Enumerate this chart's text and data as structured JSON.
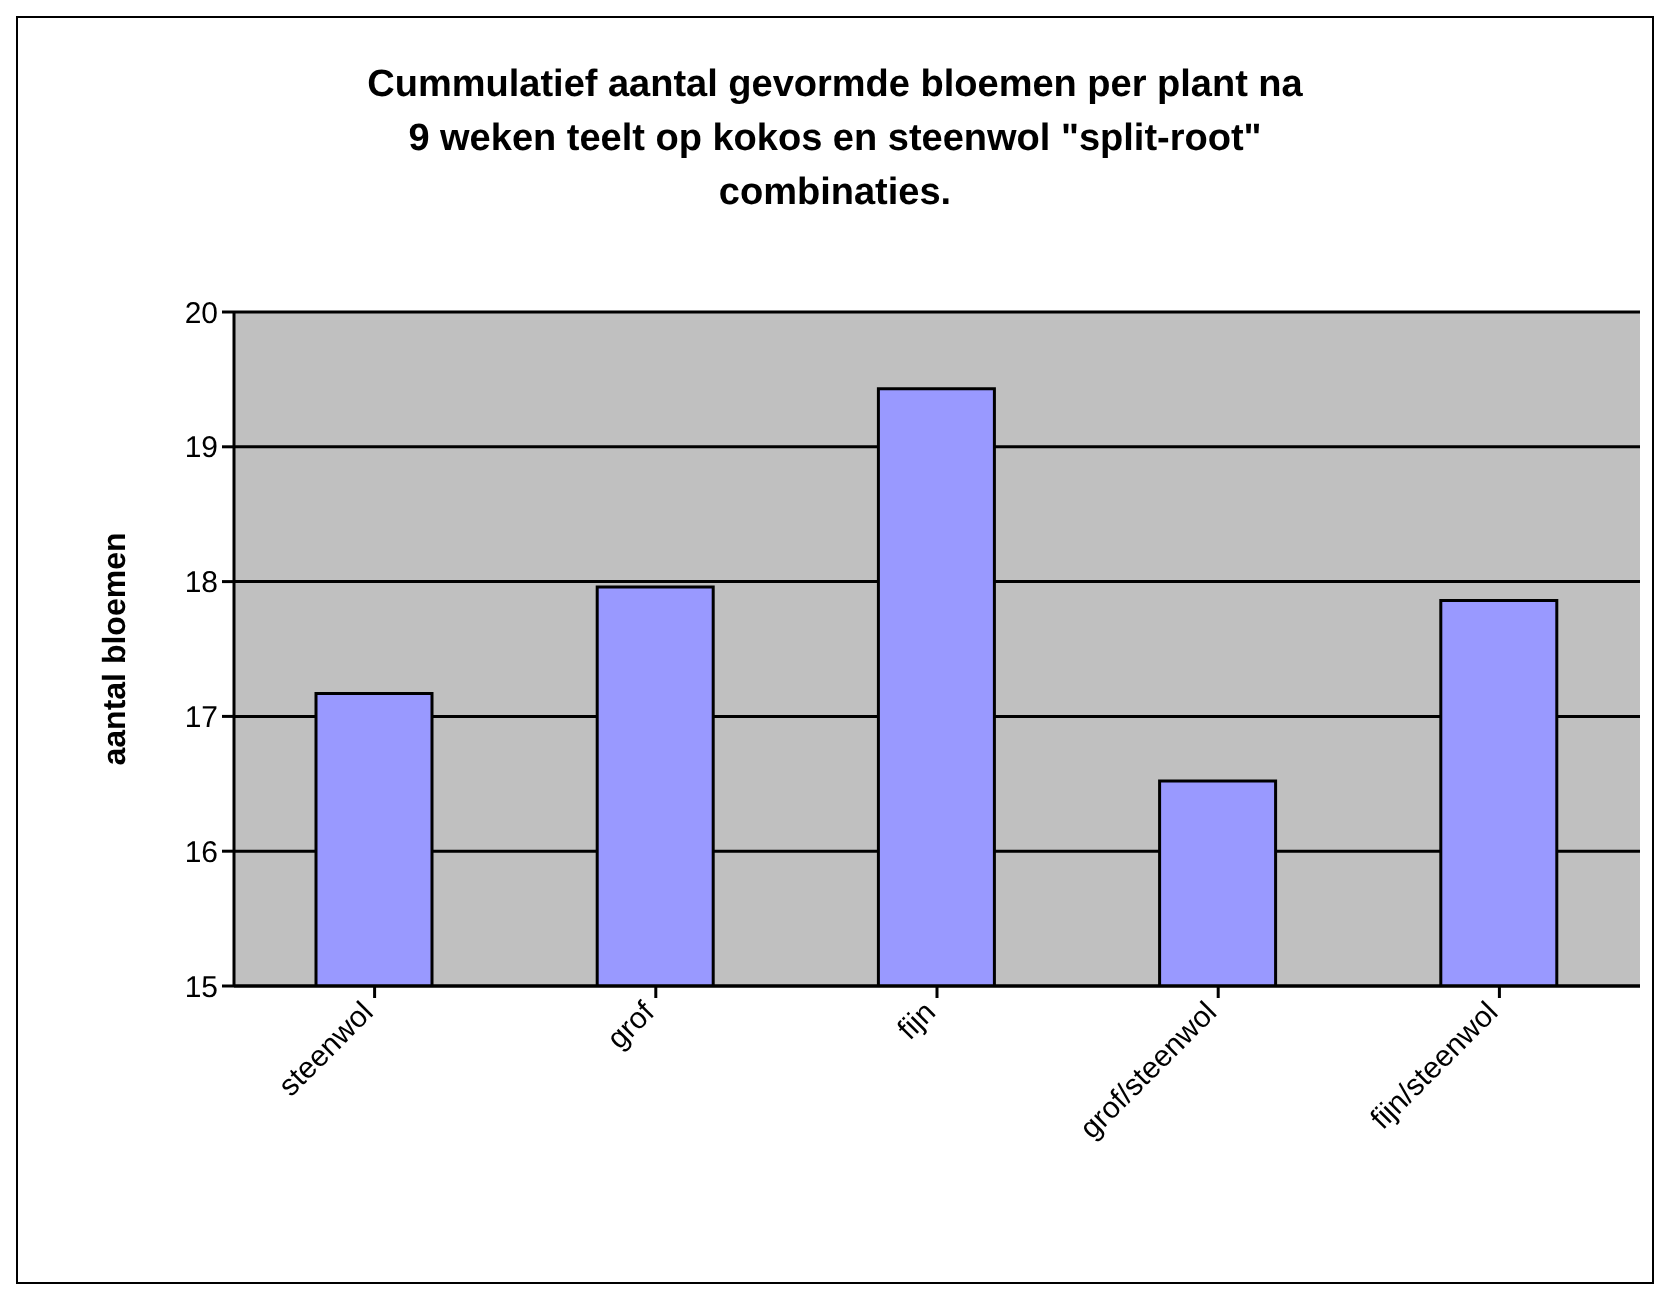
{
  "chart_data": {
    "type": "bar",
    "title": "Cummulatief aantal gevormde bloemen per plant na 9 weken teelt op kokos en steenwol \"split-root\" combinaties.",
    "ylabel": "aantal bloemen",
    "categories": [
      "steenwol",
      "grof",
      "fijn",
      "grof/steenwol",
      "fijn/steenwol"
    ],
    "values": [
      17.17,
      17.96,
      19.43,
      16.52,
      17.86
    ],
    "color": "#9999ff",
    "ylim": [
      15,
      20
    ],
    "yticks": [
      15,
      16,
      17,
      18,
      19,
      20
    ],
    "grid": "y"
  }
}
